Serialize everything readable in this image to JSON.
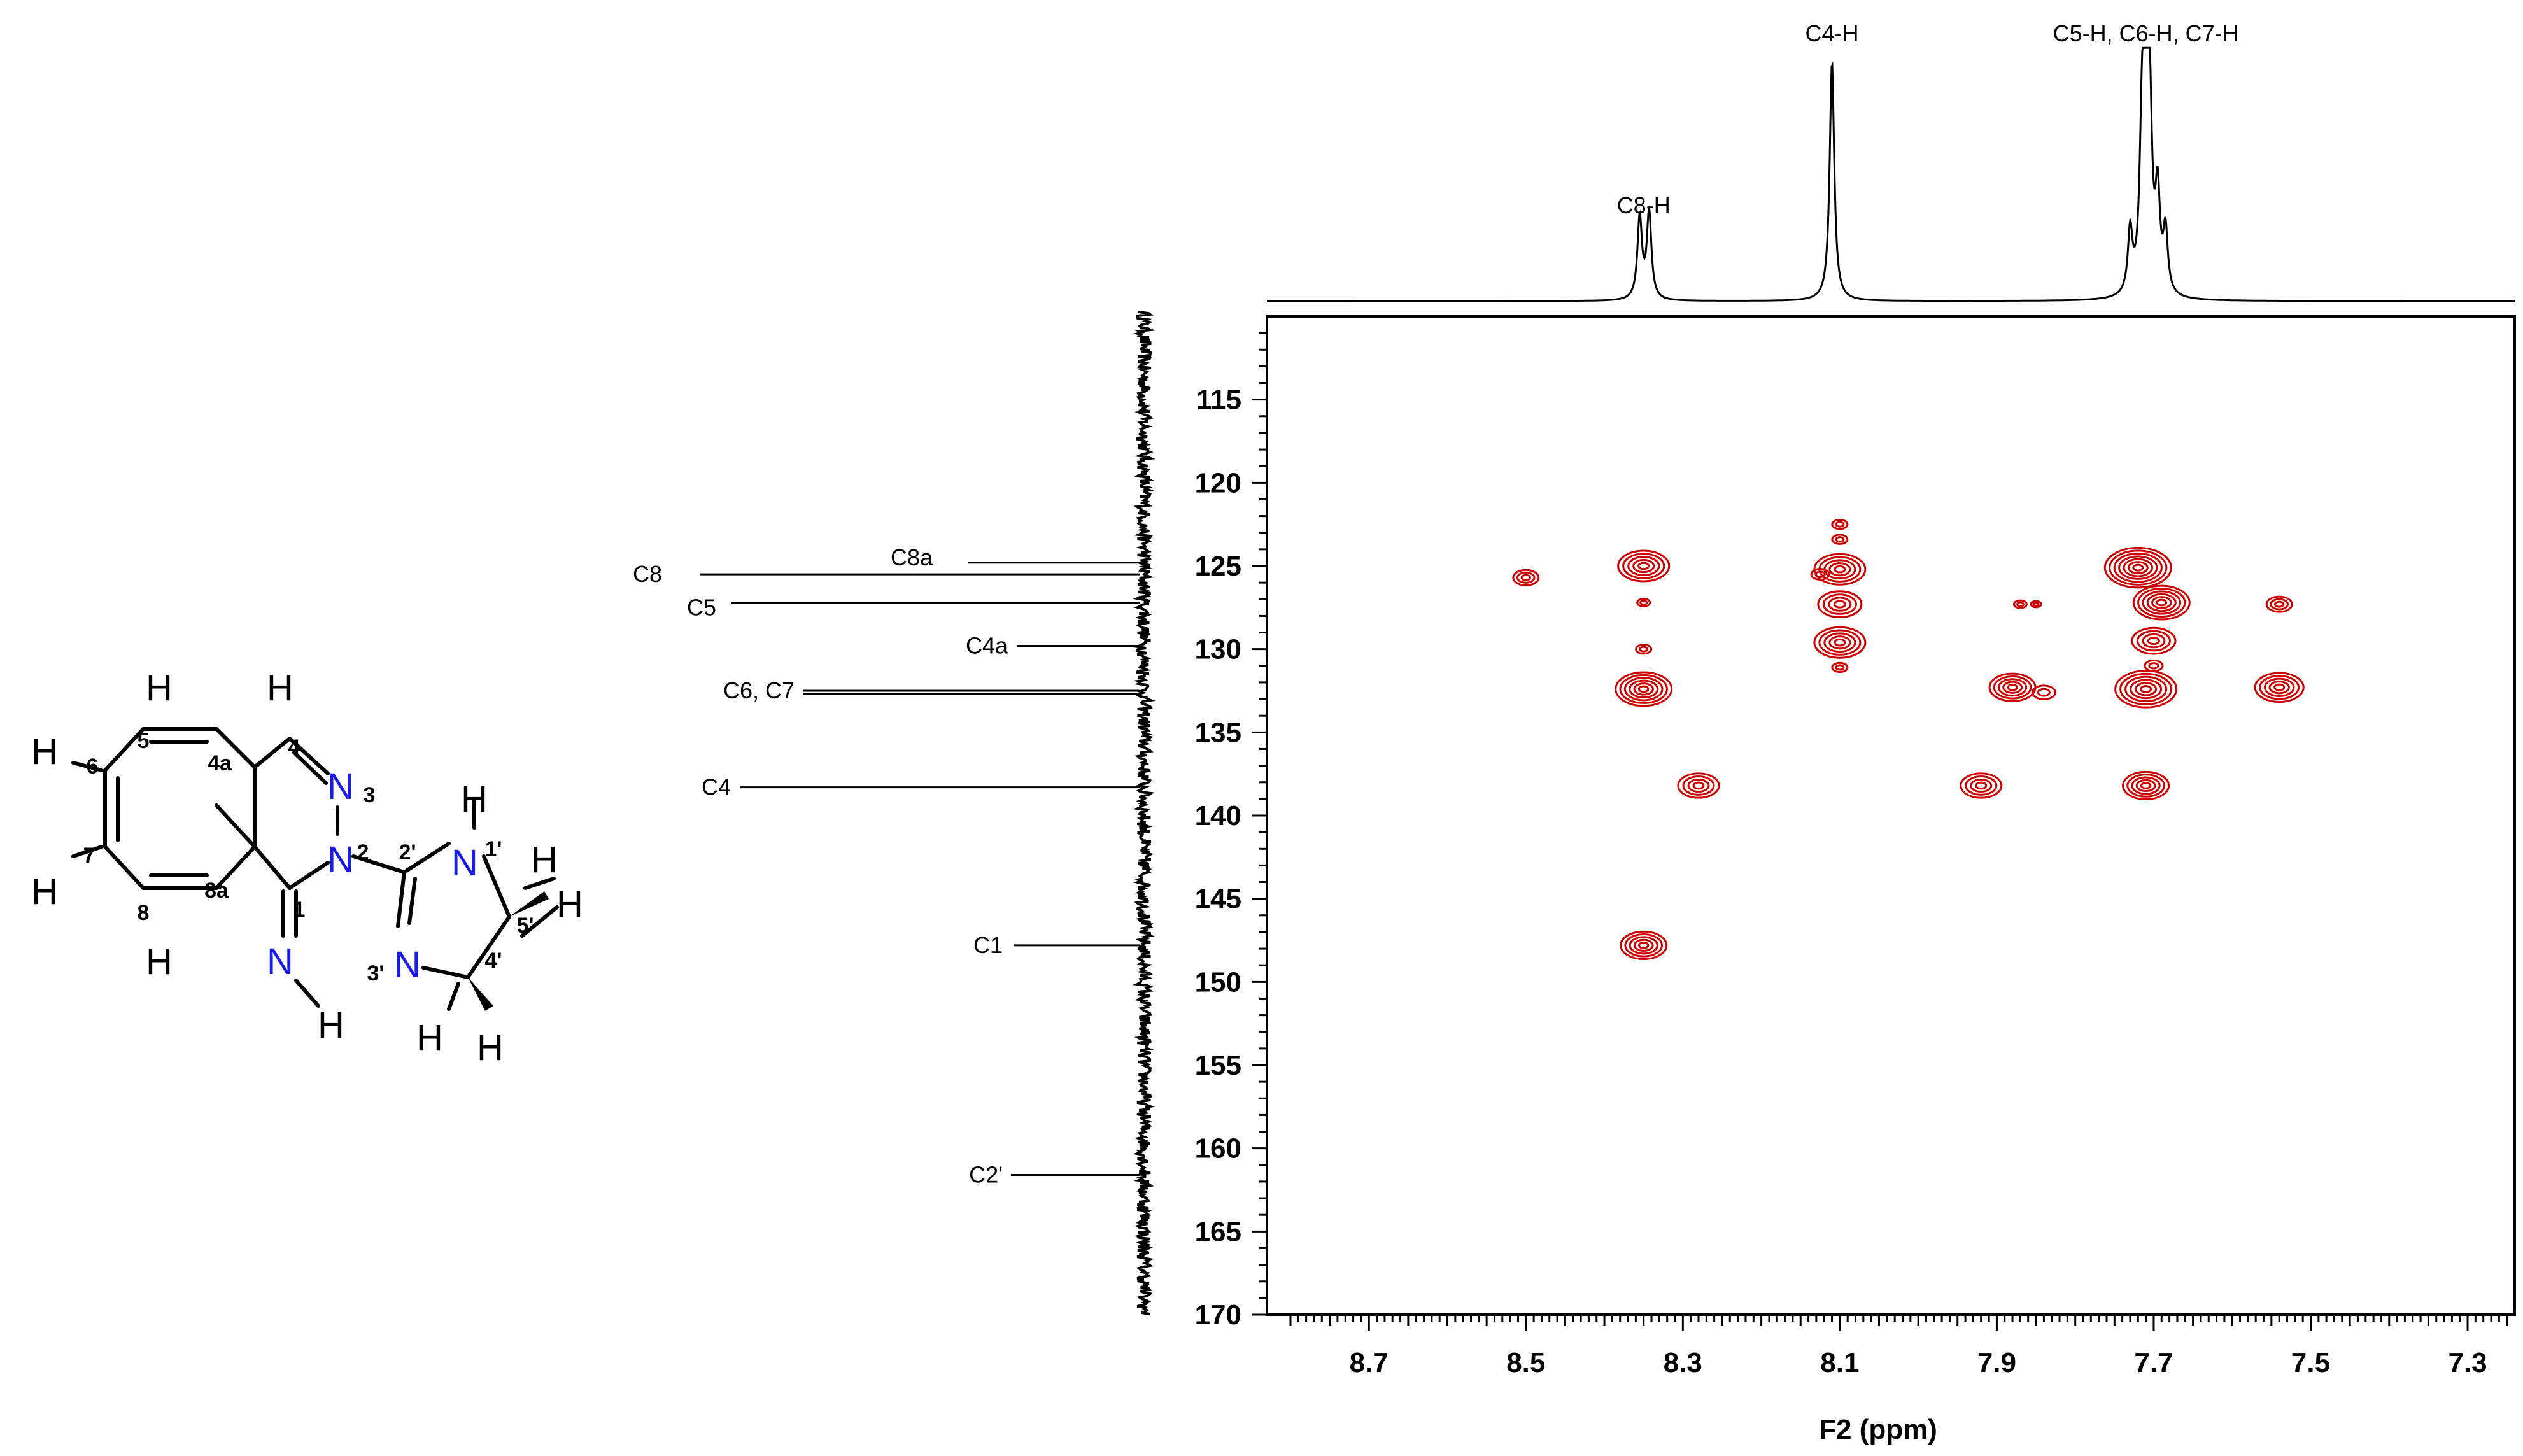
{
  "molecule": {
    "atoms": {
      "H_top_5": "H",
      "H_top_4": "H",
      "H_6": "H",
      "H_7": "H",
      "H_8": "H",
      "N3": "N",
      "N2": "N",
      "H_1p": "H",
      "N1p": "N",
      "H_5p_a": "H",
      "H_5p_b": "H",
      "N3p": "N",
      "N_imine": "N",
      "H_imine": "H",
      "H_4p_a": "H",
      "H_4p_b": "H"
    },
    "locants": {
      "l5": "5",
      "l4": "4",
      "l4a": "4a",
      "l6": "6",
      "l7": "7",
      "l8": "8",
      "l8a": "8a",
      "l1": "1",
      "l2": "2",
      "l3": "3",
      "l1p": "1'",
      "l2p": "2'",
      "l3p": "3'",
      "l4p": "4'",
      "l5p": "5'"
    },
    "colors": {
      "nitrogen": "#1a1ae6",
      "bond": "#000000"
    }
  },
  "chart_data": {
    "type": "heatmap",
    "experiment": "HSQC/HMBC-style 2D NMR contour plot",
    "xlabel": "F2 (ppm)",
    "ylabel": "",
    "xlim": [
      8.83,
      7.24
    ],
    "ylim": [
      170,
      110
    ],
    "x_ticks": [
      "8.7",
      "8.5",
      "8.3",
      "8.1",
      "7.9",
      "7.7",
      "7.5",
      "7.3"
    ],
    "y_ticks": [
      "115",
      "120",
      "125",
      "130",
      "135",
      "140",
      "145",
      "150",
      "155",
      "160",
      "165",
      "170"
    ],
    "contour_color": "#cc0000",
    "top_projection_labels": [
      {
        "text": "C8-H",
        "ppm": 8.35
      },
      {
        "text": "C4-H",
        "ppm": 8.11
      },
      {
        "text": "C5-H, C6-H, C7-H",
        "ppm": 7.71
      }
    ],
    "top_projection_peaks": [
      {
        "ppm": 8.355,
        "height": 0.33
      },
      {
        "ppm": 8.343,
        "height": 0.35
      },
      {
        "ppm": 8.11,
        "height": 0.96
      },
      {
        "ppm": 7.73,
        "height": 0.25
      },
      {
        "ppm": 7.715,
        "height": 0.55
      },
      {
        "ppm": 7.71,
        "height": 1.0
      },
      {
        "ppm": 7.705,
        "height": 0.6
      },
      {
        "ppm": 7.695,
        "height": 0.38
      },
      {
        "ppm": 7.685,
        "height": 0.25
      }
    ],
    "f1_projection_labels": [
      {
        "text": "C8",
        "ppm": 125.5
      },
      {
        "text": "C8a",
        "ppm": 124.8
      },
      {
        "text": "C5",
        "ppm": 127.2
      },
      {
        "text": "C4a",
        "ppm": 129.8
      },
      {
        "text": "C6, C7",
        "ppm": 132.5
      },
      {
        "text": "C4",
        "ppm": 138.3
      },
      {
        "text": "C1",
        "ppm": 147.8
      },
      {
        "text": "C2'",
        "ppm": 161.6
      }
    ],
    "cross_peaks": [
      {
        "x": 8.5,
        "y": 125.7,
        "size": 0.5
      },
      {
        "x": 8.35,
        "y": 125.0,
        "size": 1.0
      },
      {
        "x": 8.35,
        "y": 127.2,
        "size": 0.25
      },
      {
        "x": 8.35,
        "y": 130.0,
        "size": 0.3
      },
      {
        "x": 8.35,
        "y": 132.4,
        "size": 1.1
      },
      {
        "x": 8.35,
        "y": 147.8,
        "size": 0.9
      },
      {
        "x": 8.28,
        "y": 138.2,
        "size": 0.8
      },
      {
        "x": 8.125,
        "y": 125.5,
        "size": 0.35
      },
      {
        "x": 8.1,
        "y": 122.5,
        "size": 0.3
      },
      {
        "x": 8.1,
        "y": 123.4,
        "size": 0.3
      },
      {
        "x": 8.1,
        "y": 125.2,
        "size": 1.0
      },
      {
        "x": 8.1,
        "y": 127.3,
        "size": 0.85
      },
      {
        "x": 8.1,
        "y": 129.6,
        "size": 1.0
      },
      {
        "x": 8.1,
        "y": 131.1,
        "size": 0.3
      },
      {
        "x": 7.92,
        "y": 138.2,
        "size": 0.8
      },
      {
        "x": 7.87,
        "y": 127.3,
        "size": 0.25
      },
      {
        "x": 7.85,
        "y": 127.3,
        "size": 0.2
      },
      {
        "x": 7.88,
        "y": 132.3,
        "size": 0.9
      },
      {
        "x": 7.84,
        "y": 132.6,
        "size": 0.45
      },
      {
        "x": 7.72,
        "y": 125.1,
        "size": 1.3
      },
      {
        "x": 7.69,
        "y": 127.2,
        "size": 1.1
      },
      {
        "x": 7.7,
        "y": 129.5,
        "size": 0.85
      },
      {
        "x": 7.7,
        "y": 131.0,
        "size": 0.35
      },
      {
        "x": 7.71,
        "y": 132.4,
        "size": 1.2
      },
      {
        "x": 7.71,
        "y": 138.2,
        "size": 0.9
      },
      {
        "x": 7.54,
        "y": 127.3,
        "size": 0.5
      },
      {
        "x": 7.54,
        "y": 132.3,
        "size": 0.95
      }
    ]
  }
}
